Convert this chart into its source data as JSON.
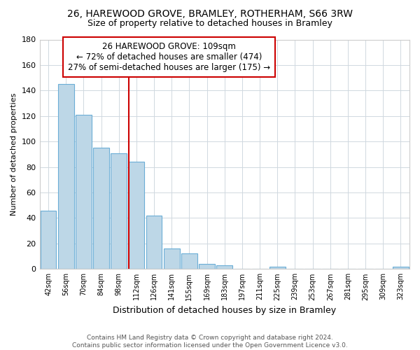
{
  "title": "26, HAREWOOD GROVE, BRAMLEY, ROTHERHAM, S66 3RW",
  "subtitle": "Size of property relative to detached houses in Bramley",
  "xlabel": "Distribution of detached houses by size in Bramley",
  "ylabel": "Number of detached properties",
  "bar_labels": [
    "42sqm",
    "56sqm",
    "70sqm",
    "84sqm",
    "98sqm",
    "112sqm",
    "126sqm",
    "141sqm",
    "155sqm",
    "169sqm",
    "183sqm",
    "197sqm",
    "211sqm",
    "225sqm",
    "239sqm",
    "253sqm",
    "267sqm",
    "281sqm",
    "295sqm",
    "309sqm",
    "323sqm"
  ],
  "bar_values": [
    46,
    145,
    121,
    95,
    91,
    84,
    42,
    16,
    12,
    4,
    3,
    0,
    0,
    2,
    0,
    0,
    0,
    0,
    0,
    0,
    2
  ],
  "bar_color": "#bdd7e7",
  "bar_edge_color": "#6baed6",
  "vline_color": "#cc0000",
  "vline_index": 4.55,
  "ylim": [
    0,
    180
  ],
  "yticks": [
    0,
    20,
    40,
    60,
    80,
    100,
    120,
    140,
    160,
    180
  ],
  "annotation_title": "26 HAREWOOD GROVE: 109sqm",
  "annotation_line1": "← 72% of detached houses are smaller (474)",
  "annotation_line2": "27% of semi-detached houses are larger (175) →",
  "footer1": "Contains HM Land Registry data © Crown copyright and database right 2024.",
  "footer2": "Contains public sector information licensed under the Open Government Licence v3.0.",
  "title_fontsize": 10,
  "subtitle_fontsize": 9,
  "ann_fontsize": 8.5,
  "ylabel_fontsize": 8,
  "xlabel_fontsize": 9
}
